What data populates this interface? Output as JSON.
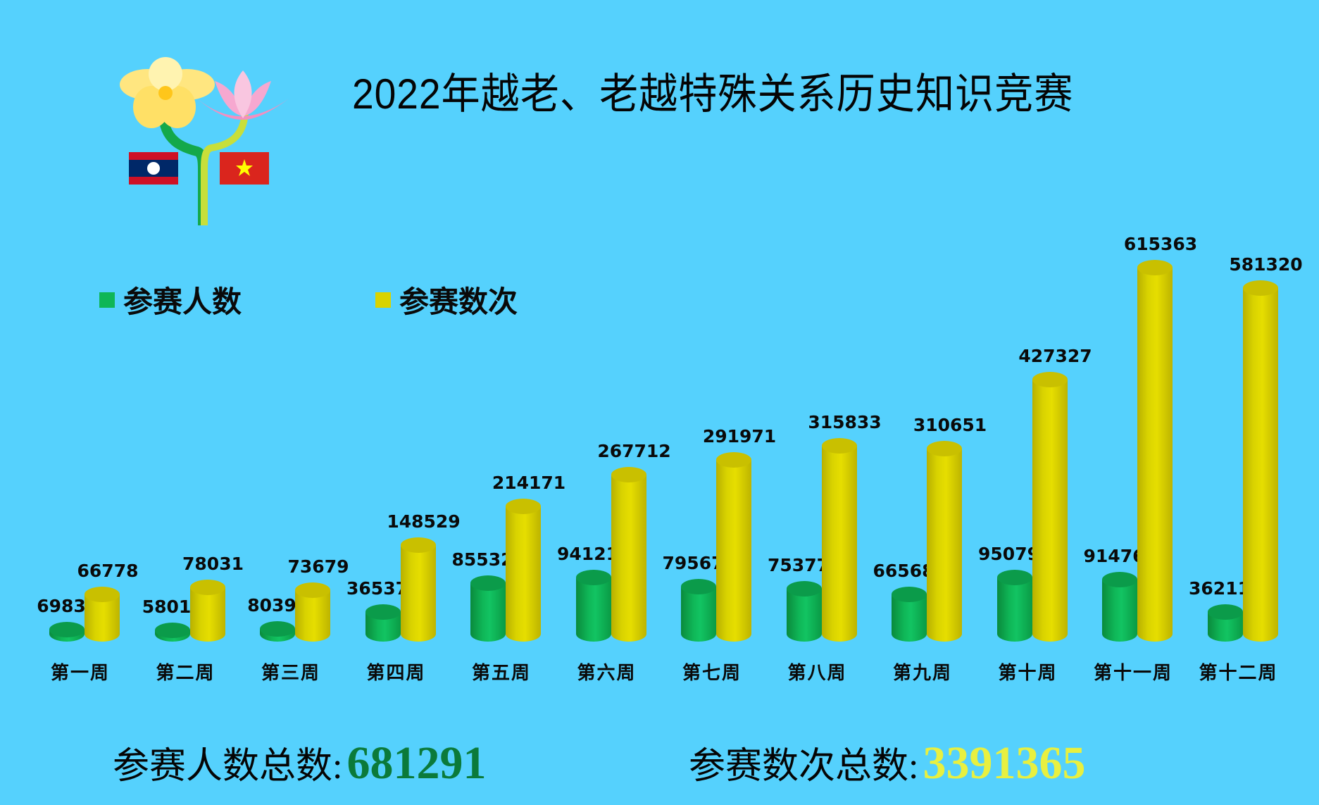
{
  "title": "2022年越老、老越特殊关系历史知识竞赛",
  "logo": {
    "icons": [
      "frangipani-flower-icon",
      "lotus-flower-icon",
      "laos-flag-icon",
      "vietnam-flag-icon"
    ]
  },
  "legend": [
    {
      "label": "参赛人数",
      "color": "#0fb657"
    },
    {
      "label": "参赛数次",
      "color": "#d9d300"
    }
  ],
  "totals": {
    "participants_label": "参赛人数总数:",
    "participants_value": "681291",
    "participants_color": "#0b7a3a",
    "entries_label": "参赛数次总数:",
    "entries_value": "3391365",
    "entries_color": "#e8f040"
  },
  "chart_data": {
    "type": "bar",
    "style": "3d-cylinder",
    "title": "2022年越老、老越特殊关系历史知识竞赛",
    "xlabel": "",
    "ylabel": "",
    "grid": false,
    "legend_position": "top-left",
    "categories": [
      "第一周",
      "第二周",
      "第三周",
      "第四周",
      "第五周",
      "第六周",
      "第七周",
      "第八周",
      "第九周",
      "第十周",
      "第十一周",
      "第十二周"
    ],
    "series": [
      {
        "name": "参赛人数",
        "color": "#0fb657",
        "values": [
          6983,
          5801,
          8039,
          36537,
          85532,
          94121,
          79567,
          75377,
          66568,
          95079,
          91476,
          36211
        ],
        "labels": [
          "6983",
          "5801",
          "8039",
          "36537",
          "85532",
          "94121",
          "79567",
          "75377",
          "66568",
          "95079",
          "91476",
          "36211"
        ]
      },
      {
        "name": "参赛数次",
        "color": "#d9d300",
        "values": [
          66778,
          78031,
          73679,
          148529,
          214171,
          267712,
          291971,
          315833,
          310651,
          427327,
          615363,
          581320
        ],
        "labels": [
          "66778",
          "78031",
          "73679",
          "148529",
          "214171",
          "267712",
          "291971",
          "315833",
          "310651",
          "427327",
          "615363",
          "581320"
        ]
      }
    ],
    "totals": {
      "参赛人数": 681291,
      "参赛数次": 3391365
    }
  }
}
